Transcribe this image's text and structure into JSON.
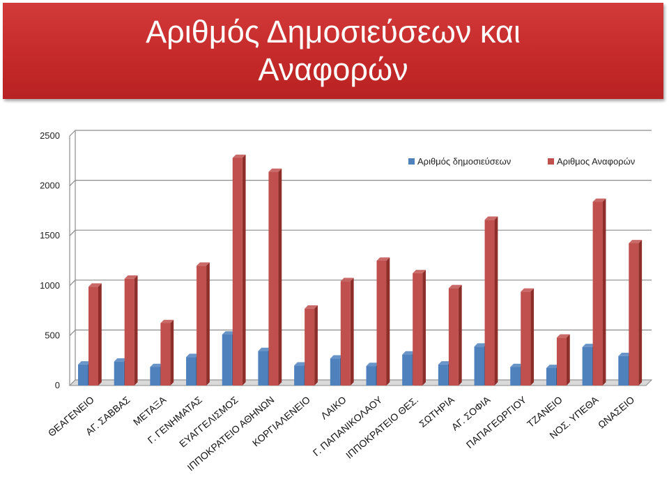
{
  "title": "Αριθμός Δημοσιεύσεων και Αναφορών",
  "colors": {
    "series_1": "#4f81bd",
    "series_1_dark": "#2f5f95",
    "series_2": "#c0504d",
    "series_2_dark": "#8e2e2b",
    "banner": "#c62a2a"
  },
  "chart_data": {
    "type": "bar",
    "title": "Αριθμός Δημοσιεύσεων και Αναφορών",
    "xlabel": "",
    "ylabel": "",
    "ylim": [
      0,
      2500
    ],
    "yticks": [
      0,
      500,
      1000,
      1500,
      2000,
      2500
    ],
    "grid": true,
    "legend": "top-right",
    "categories": [
      "ΘΕΑΓΕΝΕΙΟ",
      "ΑΓ. ΣΑΒΒΑΣ",
      "ΜΕΤΑΞΑ",
      "Γ. ΓΕΝΗΜΑΤΑΣ",
      "ΕΥΑΓΓΕΛΙΣΜΟΣ",
      "ΙΠΠΟΚΡΑΤΕΙΟ ΑΘΗΝΩΝ",
      "ΚΟΡΓΙΑΛΕΝΕΙΟ",
      "ΛΑΙΚΟ",
      "Γ. ΠΑΠΑΝΙΚΟΛΑΟΥ",
      "ΙΠΠΟΚΡΑΤΕΙΟ ΘΕΣ.",
      "ΣΩΤΗΡΙΑ",
      "ΑΓ. ΣΟΦΙΑ",
      "ΠΑΠΑΓΕΩΡΓΙΟΥ",
      "ΤΖΑΝΕΙΟ",
      "ΝΟΣ. ΥΠΕΘΑ",
      "ΩΝΑΣΕΙΟ"
    ],
    "series": [
      {
        "name": "Αριθμός δημοσιεύσεων",
        "values": [
          210,
          240,
          185,
          285,
          510,
          345,
          200,
          270,
          195,
          310,
          210,
          390,
          185,
          175,
          385,
          295
        ]
      },
      {
        "name": "Αριθμος Αναφορών",
        "values": [
          990,
          1070,
          625,
          1200,
          2280,
          2140,
          770,
          1045,
          1250,
          1125,
          975,
          1660,
          940,
          480,
          1840,
          1425
        ]
      }
    ]
  }
}
